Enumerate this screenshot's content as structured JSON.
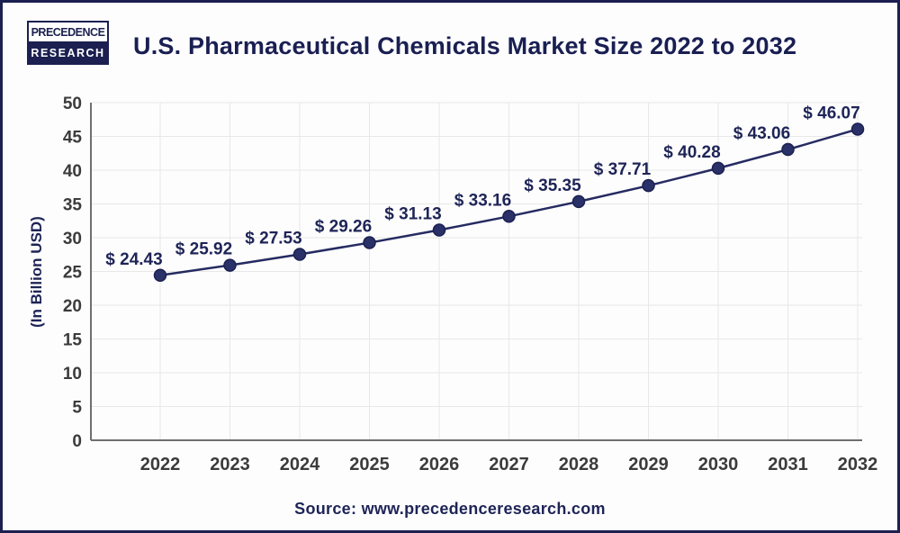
{
  "header": {
    "logo": {
      "line1": "PRECEDENCE",
      "line2": "RESEARCH"
    },
    "title": "U.S. Pharmaceutical Chemicals Market Size 2022 to 2032"
  },
  "chart_data": {
    "type": "line",
    "title": "U.S. Pharmaceutical Chemicals Market Size 2022 to 2032",
    "categories": [
      "2022",
      "2023",
      "2024",
      "2025",
      "2026",
      "2027",
      "2028",
      "2029",
      "2030",
      "2031",
      "2032"
    ],
    "values": [
      24.43,
      25.92,
      27.53,
      29.26,
      31.13,
      33.16,
      35.35,
      37.71,
      40.28,
      43.06,
      46.07
    ],
    "data_labels": [
      "$ 24.43",
      "$ 25.92",
      "$ 27.53",
      "$ 29.26",
      "$ 31.13",
      "$ 33.16",
      "$ 35.35",
      "$ 37.71",
      "$ 40.28",
      "$ 43.06",
      "$ 46.07"
    ],
    "xlabel": "",
    "ylabel": "(In Billion USD)",
    "ylim": [
      0,
      50
    ],
    "ytick_step": 5,
    "yticks": [
      0,
      5,
      10,
      15,
      20,
      25,
      30,
      35,
      40,
      45,
      50
    ],
    "grid": true,
    "legend": "none"
  },
  "footer": {
    "source": "Source: www.precedenceresearch.com"
  },
  "colors": {
    "navy_text": "#1a1f52",
    "line": "#252b60",
    "marker": "#2a3168",
    "axis_text": "#3b3b3b",
    "grid": "#e8e8e8",
    "axis_line": "#6f6f6f",
    "frame_border": "#1b2050",
    "background": "#fdfdfe"
  }
}
